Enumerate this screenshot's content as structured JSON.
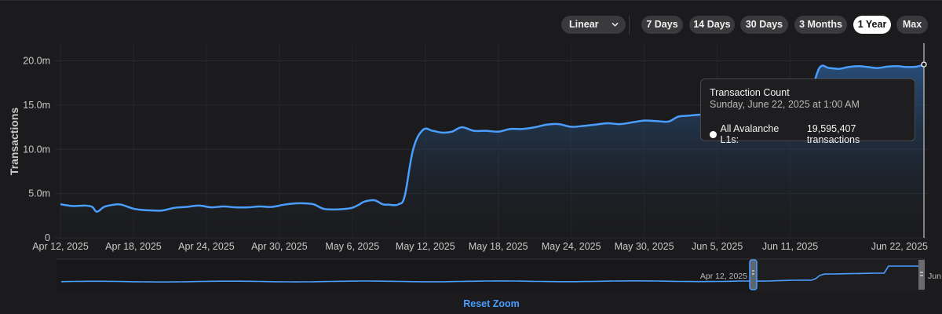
{
  "toolbar": {
    "scale_select": "Linear",
    "ranges": [
      "7 Days",
      "14 Days",
      "30 Days",
      "3 Months",
      "1 Year",
      "Max"
    ],
    "active_range": "1 Year"
  },
  "tooltip": {
    "title": "Transaction Count",
    "date": "Sunday, June 22, 2025 at 1:00 AM",
    "series": "All Avalanche L1s:",
    "value": "19,595,407 transactions"
  },
  "navigator": {
    "start_label": "Apr 12, 2025",
    "end_label": "Jun"
  },
  "reset_zoom": "Reset Zoom",
  "colors": {
    "background": "#1b1b1d",
    "line": "#4a9eff",
    "active_button": "#ffffff",
    "button": "#3a3a3d"
  },
  "chart_data": {
    "type": "area",
    "ylabel": "Transactions",
    "xlabel": "",
    "ylim": [
      0,
      22000000
    ],
    "y_ticks": [
      0,
      5000000,
      10000000,
      15000000,
      20000000
    ],
    "y_tick_labels": [
      "0",
      "5.0m",
      "10.0m",
      "15.0m",
      "20.0m"
    ],
    "x_tick_labels": [
      "Apr 12, 2025",
      "Apr 18, 2025",
      "Apr 24, 2025",
      "Apr 30, 2025",
      "May 6, 2025",
      "May 12, 2025",
      "May 18, 2025",
      "May 24, 2025",
      "May 30, 2025",
      "Jun 5, 2025",
      "Jun 11, 2025",
      "Jun 22, 2025"
    ],
    "x_tick_days": [
      0,
      6,
      12,
      18,
      24,
      30,
      36,
      42,
      48,
      54,
      60,
      71
    ],
    "grid": true,
    "legend": "none",
    "series": [
      {
        "name": "All Avalanche L1s",
        "x": [
          0,
          1,
          2,
          2.6,
          3,
          3.6,
          4.4,
          5,
          6,
          6.8,
          7.6,
          8.4,
          9.4,
          10.4,
          11.4,
          12.4,
          13.4,
          14.4,
          15.4,
          16.4,
          17.4,
          18.4,
          19.4,
          20,
          20.8,
          21.6,
          22.4,
          23.2,
          24,
          24.6,
          25,
          25.8,
          26.5,
          27,
          27.4,
          27.8,
          28.3,
          29,
          29.8,
          30.6,
          31.4,
          32.2,
          33,
          34,
          35,
          36,
          37,
          38,
          39,
          40,
          41,
          42,
          43,
          44,
          45,
          46,
          47,
          48,
          49,
          50,
          50.8,
          51.6,
          52.4,
          53,
          53.8,
          54.6,
          55.4,
          56.2,
          57,
          57.8,
          58.6,
          59.4,
          60,
          60.8,
          61.6,
          62.4,
          63.2,
          64,
          64.8,
          65.6,
          66.4,
          67.2,
          68,
          68.8,
          69.6,
          70.4,
          71
        ],
        "values": [
          3800000,
          3600000,
          3650000,
          3500000,
          2950000,
          3500000,
          3750000,
          3750000,
          3300000,
          3150000,
          3100000,
          3100000,
          3400000,
          3500000,
          3650000,
          3450000,
          3550000,
          3450000,
          3450000,
          3550000,
          3500000,
          3750000,
          3900000,
          3900000,
          3800000,
          3300000,
          3200000,
          3250000,
          3400000,
          3800000,
          4100000,
          4250000,
          3800000,
          3750000,
          3700000,
          3800000,
          4700000,
          10000000,
          12200000,
          12100000,
          11900000,
          12000000,
          12500000,
          12100000,
          12100000,
          12000000,
          12300000,
          12300000,
          12500000,
          12800000,
          12850000,
          12550000,
          12650000,
          12800000,
          12950000,
          12850000,
          13050000,
          13250000,
          13200000,
          13150000,
          13700000,
          13800000,
          13900000,
          13950000,
          14000000,
          14200000,
          14300000,
          14400000,
          14600000,
          14800000,
          15000000,
          15200000,
          15400000,
          15700000,
          16000000,
          19200000,
          19200000,
          19100000,
          19300000,
          19400000,
          19300000,
          19200000,
          19350000,
          19400000,
          19300000,
          19350000,
          19595407
        ]
      }
    ]
  }
}
